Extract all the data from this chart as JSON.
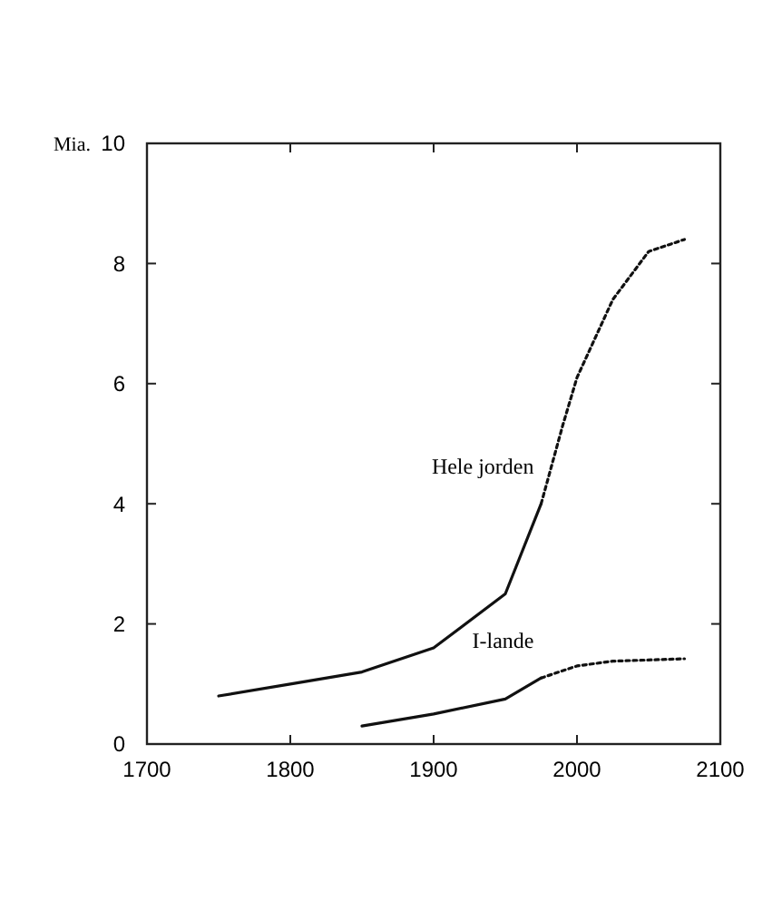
{
  "chart_data": {
    "type": "line",
    "ylabel": "Mia.",
    "xlim": [
      1700,
      2100
    ],
    "xticks": [
      1700,
      1800,
      1900,
      2000,
      2100
    ],
    "ylim": [
      0,
      10
    ],
    "yticks": [
      0,
      2,
      4,
      6,
      8,
      10
    ],
    "marker": "none",
    "series": [
      {
        "name": "Hele jorden",
        "color": "#111111",
        "line_style": "solid",
        "x": [
          1750,
          1800,
          1850,
          1900,
          1950,
          1975
        ],
        "values": [
          0.8,
          1.0,
          1.2,
          1.6,
          2.5,
          4.0
        ]
      },
      {
        "color": "#111111",
        "line_style": "dotted",
        "x": [
          1975,
          1990,
          2000,
          2025,
          2050,
          2075
        ],
        "values": [
          4.0,
          5.3,
          6.1,
          7.4,
          8.2,
          8.4
        ]
      },
      {
        "name": "I-lande",
        "color": "#111111",
        "line_style": "solid",
        "x": [
          1850,
          1900,
          1950,
          1975
        ],
        "values": [
          0.3,
          0.5,
          0.75,
          1.1
        ]
      },
      {
        "color": "#111111",
        "line_style": "dotted",
        "x": [
          1975,
          2000,
          2025,
          2050,
          2075
        ],
        "values": [
          1.1,
          1.3,
          1.38,
          1.4,
          1.42
        ]
      }
    ]
  }
}
